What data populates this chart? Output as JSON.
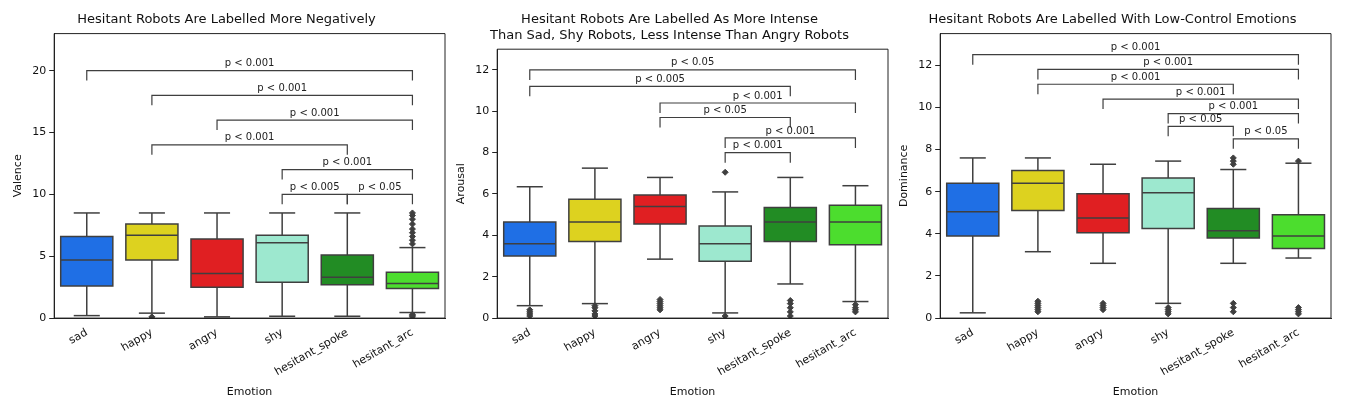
{
  "chart_data": [
    {
      "type": "box",
      "title": "Hesitant Robots Are Labelled More Negatively",
      "xlabel": "Emotion",
      "ylabel": "Valence",
      "categories": [
        "sad",
        "happy",
        "angry",
        "shy",
        "hesitant_spoke",
        "hesitant_arc"
      ],
      "colors": [
        "#1f6fe5",
        "#ddd21f",
        "#e01f22",
        "#9de8cf",
        "#228c24",
        "#4cdd2e"
      ],
      "ylim": [
        0,
        23
      ],
      "yticks": [
        0,
        5,
        10,
        15,
        20
      ],
      "grid": false,
      "legend": false,
      "boxes": [
        {
          "low": 0.2,
          "q1": 2.6,
          "median": 4.7,
          "q3": 6.6,
          "high": 8.5
        },
        {
          "low": 0.4,
          "q1": 4.7,
          "median": 6.7,
          "q3": 7.6,
          "high": 8.5,
          "outliers": [
            0.1
          ]
        },
        {
          "low": 0.1,
          "q1": 2.5,
          "median": 3.6,
          "q3": 6.4,
          "high": 8.5
        },
        {
          "low": 0.15,
          "q1": 2.9,
          "median": 6.1,
          "q3": 6.7,
          "high": 8.5
        },
        {
          "low": 0.15,
          "q1": 2.7,
          "median": 3.3,
          "q3": 5.1,
          "high": 8.5
        },
        {
          "low": 0.45,
          "q1": 2.4,
          "median": 2.8,
          "q3": 3.7,
          "high": 5.7,
          "outliers": [
            0.1,
            0.2,
            0.3,
            6.0,
            6.3,
            6.6,
            6.9,
            7.2,
            7.6,
            8.0,
            8.3,
            8.5
          ]
        }
      ],
      "annotations": [
        "p < 0.001",
        "p < 0.001",
        "p < 0.001",
        "p < 0.001",
        "p < 0.001",
        "p < 0.005",
        "p < 0.05"
      ]
    },
    {
      "type": "box",
      "title": "Hesitant Robots Are Labelled As More Intense\nThan Sad, Shy Robots, Less Intense Than Angry Robots",
      "xlabel": "Emotion",
      "ylabel": "Arousal",
      "categories": [
        "sad",
        "happy",
        "angry",
        "shy",
        "hesitant_spoke",
        "hesitant_arc"
      ],
      "colors": [
        "#1f6fe5",
        "#ddd21f",
        "#e01f22",
        "#9de8cf",
        "#228c24",
        "#4cdd2e"
      ],
      "ylim": [
        0,
        13
      ],
      "yticks": [
        0,
        2,
        4,
        6,
        8,
        10,
        12
      ],
      "grid": false,
      "legend": false,
      "boxes": [
        {
          "low": 0.6,
          "q1": 3.0,
          "median": 3.6,
          "q3": 4.65,
          "high": 6.35,
          "outliers": [
            0.1,
            0.2,
            0.3,
            0.4
          ]
        },
        {
          "low": 0.7,
          "q1": 3.7,
          "median": 4.65,
          "q3": 5.75,
          "high": 7.25,
          "outliers": [
            0.1,
            0.2,
            0.35,
            0.5,
            0.6
          ]
        },
        {
          "low": 2.85,
          "q1": 4.55,
          "median": 5.4,
          "q3": 5.95,
          "high": 6.8,
          "outliers": [
            0.4,
            0.5,
            0.6,
            0.7,
            0.8,
            0.9
          ]
        },
        {
          "low": 0.25,
          "q1": 2.75,
          "median": 3.6,
          "q3": 4.45,
          "high": 6.1,
          "outliers": [
            0.1,
            7.05
          ]
        },
        {
          "low": 1.65,
          "q1": 3.7,
          "median": 4.65,
          "q3": 5.35,
          "high": 6.8,
          "outliers": [
            0.1,
            0.3,
            0.5,
            0.7,
            0.85
          ]
        },
        {
          "low": 0.8,
          "q1": 3.55,
          "median": 4.65,
          "q3": 5.45,
          "high": 6.4,
          "outliers": [
            0.3,
            0.4,
            0.5,
            0.65
          ]
        }
      ],
      "annotations": [
        "p < 0.05",
        "p < 0.005",
        "p < 0.001",
        "p < 0.05",
        "p < 0.001",
        "p < 0.001"
      ]
    },
    {
      "type": "box",
      "title": "Hesitant Robots Are Labelled With Low-Control Emotions",
      "xlabel": "Emotion",
      "ylabel": "Dominance",
      "categories": [
        "sad",
        "happy",
        "angry",
        "shy",
        "hesitant_spoke",
        "hesitant_arc"
      ],
      "colors": [
        "#1f6fe5",
        "#ddd21f",
        "#e01f22",
        "#9de8cf",
        "#228c24",
        "#4cdd2e"
      ],
      "ylim": [
        0,
        13.5
      ],
      "yticks": [
        0,
        2,
        4,
        6,
        8,
        10,
        12
      ],
      "grid": false,
      "legend": false,
      "boxes": [
        {
          "low": 0.25,
          "q1": 3.9,
          "median": 5.05,
          "q3": 6.4,
          "high": 7.6
        },
        {
          "low": 3.15,
          "q1": 5.1,
          "median": 6.4,
          "q3": 7.0,
          "high": 7.6,
          "outliers": [
            0.3,
            0.4,
            0.5,
            0.6,
            0.7,
            0.8
          ]
        },
        {
          "low": 2.6,
          "q1": 4.05,
          "median": 4.75,
          "q3": 5.9,
          "high": 7.3,
          "outliers": [
            0.4,
            0.5,
            0.6,
            0.7
          ]
        },
        {
          "low": 0.7,
          "q1": 4.25,
          "median": 5.95,
          "q3": 6.65,
          "high": 7.45,
          "outliers": [
            0.2,
            0.3,
            0.4,
            0.5
          ]
        },
        {
          "low": 2.6,
          "q1": 3.8,
          "median": 4.15,
          "q3": 5.2,
          "high": 7.05,
          "outliers": [
            0.3,
            0.5,
            0.7,
            7.3,
            7.45,
            7.6
          ]
        },
        {
          "low": 2.85,
          "q1": 3.3,
          "median": 3.9,
          "q3": 4.9,
          "high": 7.35,
          "outliers": [
            0.2,
            0.3,
            0.4,
            0.5,
            7.45
          ]
        }
      ],
      "annotations": [
        "p < 0.001",
        "p < 0.001",
        "p < 0.001",
        "p < 0.001",
        "p < 0.001",
        "p < 0.05",
        "p < 0.05"
      ]
    }
  ]
}
